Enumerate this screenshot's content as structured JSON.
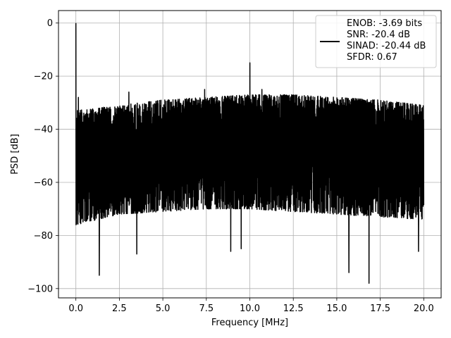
{
  "chart_data": {
    "type": "line",
    "title": "",
    "xlabel": "Frequency [MHz]",
    "ylabel": "PSD [dB]",
    "xlim": [
      -1.0,
      21.0
    ],
    "ylim": [
      -103.5,
      4.7
    ],
    "xticks": [
      0.0,
      2.5,
      5.0,
      7.5,
      10.0,
      12.5,
      15.0,
      17.5,
      20.0
    ],
    "xtick_labels": [
      "0.0",
      "2.5",
      "5.0",
      "7.5",
      "10.0",
      "12.5",
      "15.0",
      "17.5",
      "20.0"
    ],
    "yticks": [
      0,
      -20,
      -40,
      -60,
      -80,
      -100
    ],
    "ytick_labels": [
      "0",
      "−20",
      "−40",
      "−60",
      "−80",
      "−100"
    ],
    "grid": true,
    "legend_position": "top-right",
    "legend_entries": [
      "ENOB: -3.69 bits",
      "SNR: -20.4 dB",
      "SINAD: -20.44 dB",
      "SFDR: 0.67"
    ],
    "series": [
      {
        "color": "#000000",
        "x_range": [
          0.0,
          20.0
        ],
        "noise_ceiling": [
          [
            0.0,
            -33
          ],
          [
            2.5,
            -31
          ],
          [
            5.0,
            -29
          ],
          [
            7.5,
            -28
          ],
          [
            10.0,
            -27
          ],
          [
            12.5,
            -27
          ],
          [
            15.0,
            -28
          ],
          [
            17.5,
            -29
          ],
          [
            20.0,
            -31
          ]
        ],
        "noise_floor": [
          [
            0.0,
            -76
          ],
          [
            2.5,
            -72
          ],
          [
            5.0,
            -71
          ],
          [
            7.5,
            -70
          ],
          [
            10.0,
            -70
          ],
          [
            12.5,
            -71
          ],
          [
            15.0,
            -72
          ],
          [
            17.5,
            -73
          ],
          [
            20.0,
            -74
          ]
        ],
        "peaks": [
          [
            0.0,
            0
          ],
          [
            10.0,
            -15
          ],
          [
            0.15,
            -28
          ],
          [
            3.05,
            -26
          ],
          [
            7.4,
            -25
          ],
          [
            10.7,
            -25
          ]
        ],
        "dips": [
          [
            1.35,
            -95
          ],
          [
            3.5,
            -87
          ],
          [
            8.9,
            -86
          ],
          [
            9.5,
            -85
          ],
          [
            15.7,
            -94
          ],
          [
            16.85,
            -98
          ],
          [
            19.7,
            -86
          ]
        ]
      }
    ]
  }
}
